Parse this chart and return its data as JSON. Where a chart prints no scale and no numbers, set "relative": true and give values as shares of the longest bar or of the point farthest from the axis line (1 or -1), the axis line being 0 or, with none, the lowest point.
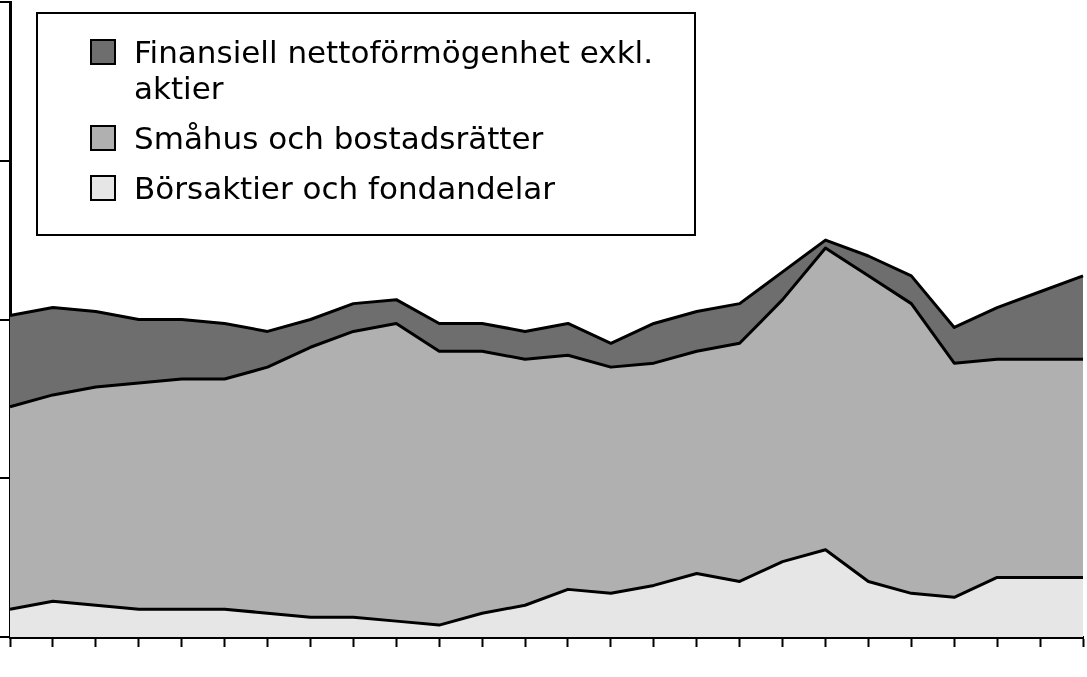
{
  "chart_data": {
    "type": "area",
    "stacked": true,
    "relative": true,
    "legend": "top left",
    "categories": [
      null,
      null,
      null,
      null,
      null,
      null,
      null,
      null,
      null,
      null,
      null,
      null,
      null,
      null,
      null,
      null,
      null,
      null,
      null,
      null,
      null,
      null,
      null,
      null,
      null,
      null
    ],
    "series": [
      {
        "name": "Börsaktier och fondandelar",
        "color": "#e6e6e6",
        "values": [
          0.07,
          0.09,
          0.08,
          0.07,
          0.07,
          0.07,
          0.06,
          0.05,
          0.05,
          0.04,
          0.03,
          0.06,
          0.08,
          0.12,
          0.11,
          0.13,
          0.16,
          0.14,
          0.19,
          0.22,
          0.14,
          0.11,
          0.1,
          0.15,
          0.15,
          0.15
        ]
      },
      {
        "name": "Småhus och bostadsrätter",
        "color": "#b0b0b0",
        "values": [
          0.51,
          0.52,
          0.55,
          0.57,
          0.58,
          0.58,
          0.62,
          0.68,
          0.72,
          0.75,
          0.69,
          0.66,
          0.62,
          0.59,
          0.57,
          0.56,
          0.56,
          0.6,
          0.66,
          0.76,
          0.77,
          0.73,
          0.59,
          0.55,
          0.55,
          0.55
        ]
      },
      {
        "name": "Finansiell nettoförmögenhet exkl. aktier",
        "color": "#6e6e6e",
        "values": [
          0.23,
          0.22,
          0.19,
          0.16,
          0.15,
          0.14,
          0.09,
          0.07,
          0.07,
          0.06,
          0.07,
          0.07,
          0.07,
          0.08,
          0.06,
          0.1,
          0.1,
          0.1,
          0.07,
          0.02,
          0.05,
          0.07,
          0.09,
          0.13,
          0.17,
          0.21
        ]
      }
    ]
  }
}
